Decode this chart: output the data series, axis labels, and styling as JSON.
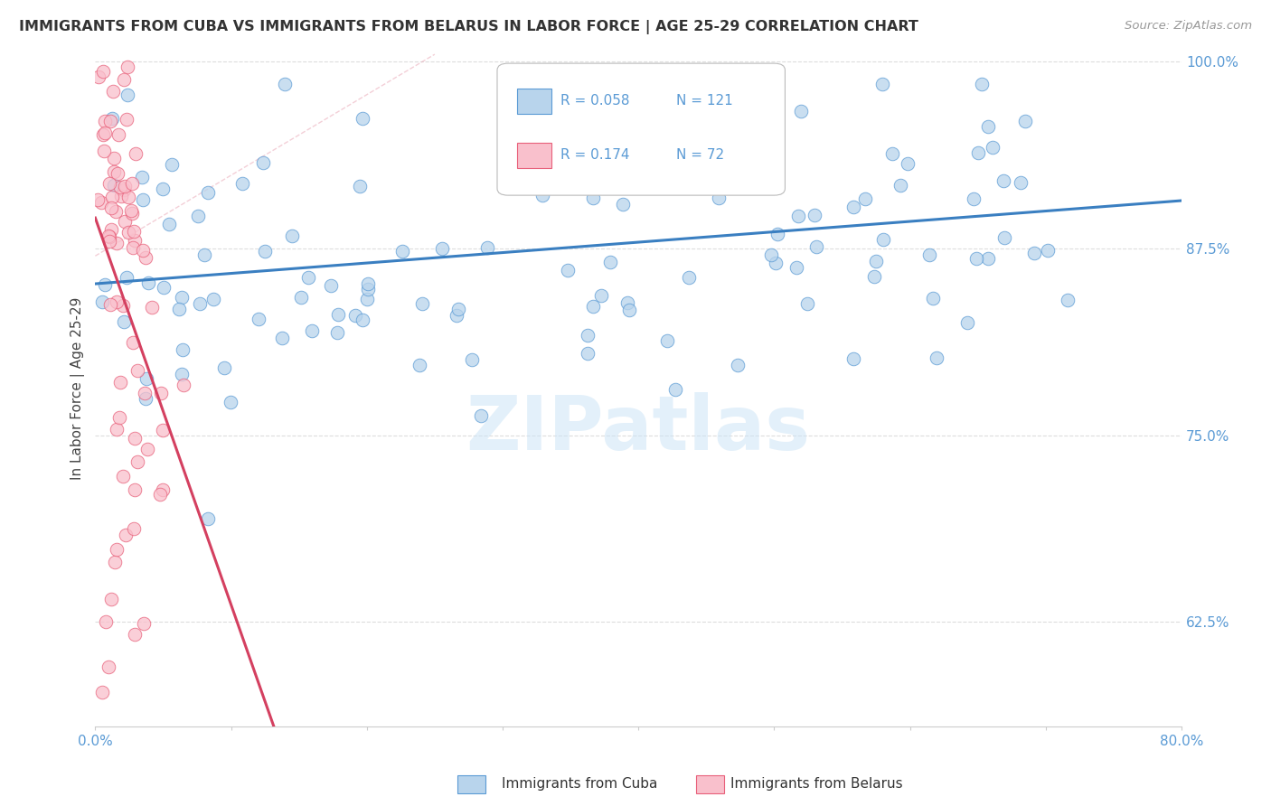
{
  "title": "IMMIGRANTS FROM CUBA VS IMMIGRANTS FROM BELARUS IN LABOR FORCE | AGE 25-29 CORRELATION CHART",
  "source": "Source: ZipAtlas.com",
  "ylabel": "In Labor Force | Age 25-29",
  "x_min": 0.0,
  "x_max": 0.8,
  "y_min": 0.555,
  "y_max": 1.008,
  "y_ticks": [
    0.625,
    0.75,
    0.875,
    1.0
  ],
  "y_tick_labels": [
    "62.5%",
    "75.0%",
    "87.5%",
    "100.0%"
  ],
  "color_blue": "#b8d4ec",
  "color_pink": "#f9c0cc",
  "edge_blue": "#5b9bd5",
  "edge_pink": "#e8607a",
  "trendline_blue": "#3a7fc1",
  "trendline_pink": "#d44060",
  "trendline_dashed": "#e8a0b0",
  "legend_R_blue": "0.058",
  "legend_N_blue": "121",
  "legend_R_pink": "0.174",
  "legend_N_pink": "72",
  "legend_label_blue": "Immigrants from Cuba",
  "legend_label_pink": "Immigrants from Belarus",
  "watermark": "ZIPatlas",
  "tick_color": "#5b9bd5",
  "grid_color": "#dddddd",
  "title_color": "#333333",
  "source_color": "#999999"
}
